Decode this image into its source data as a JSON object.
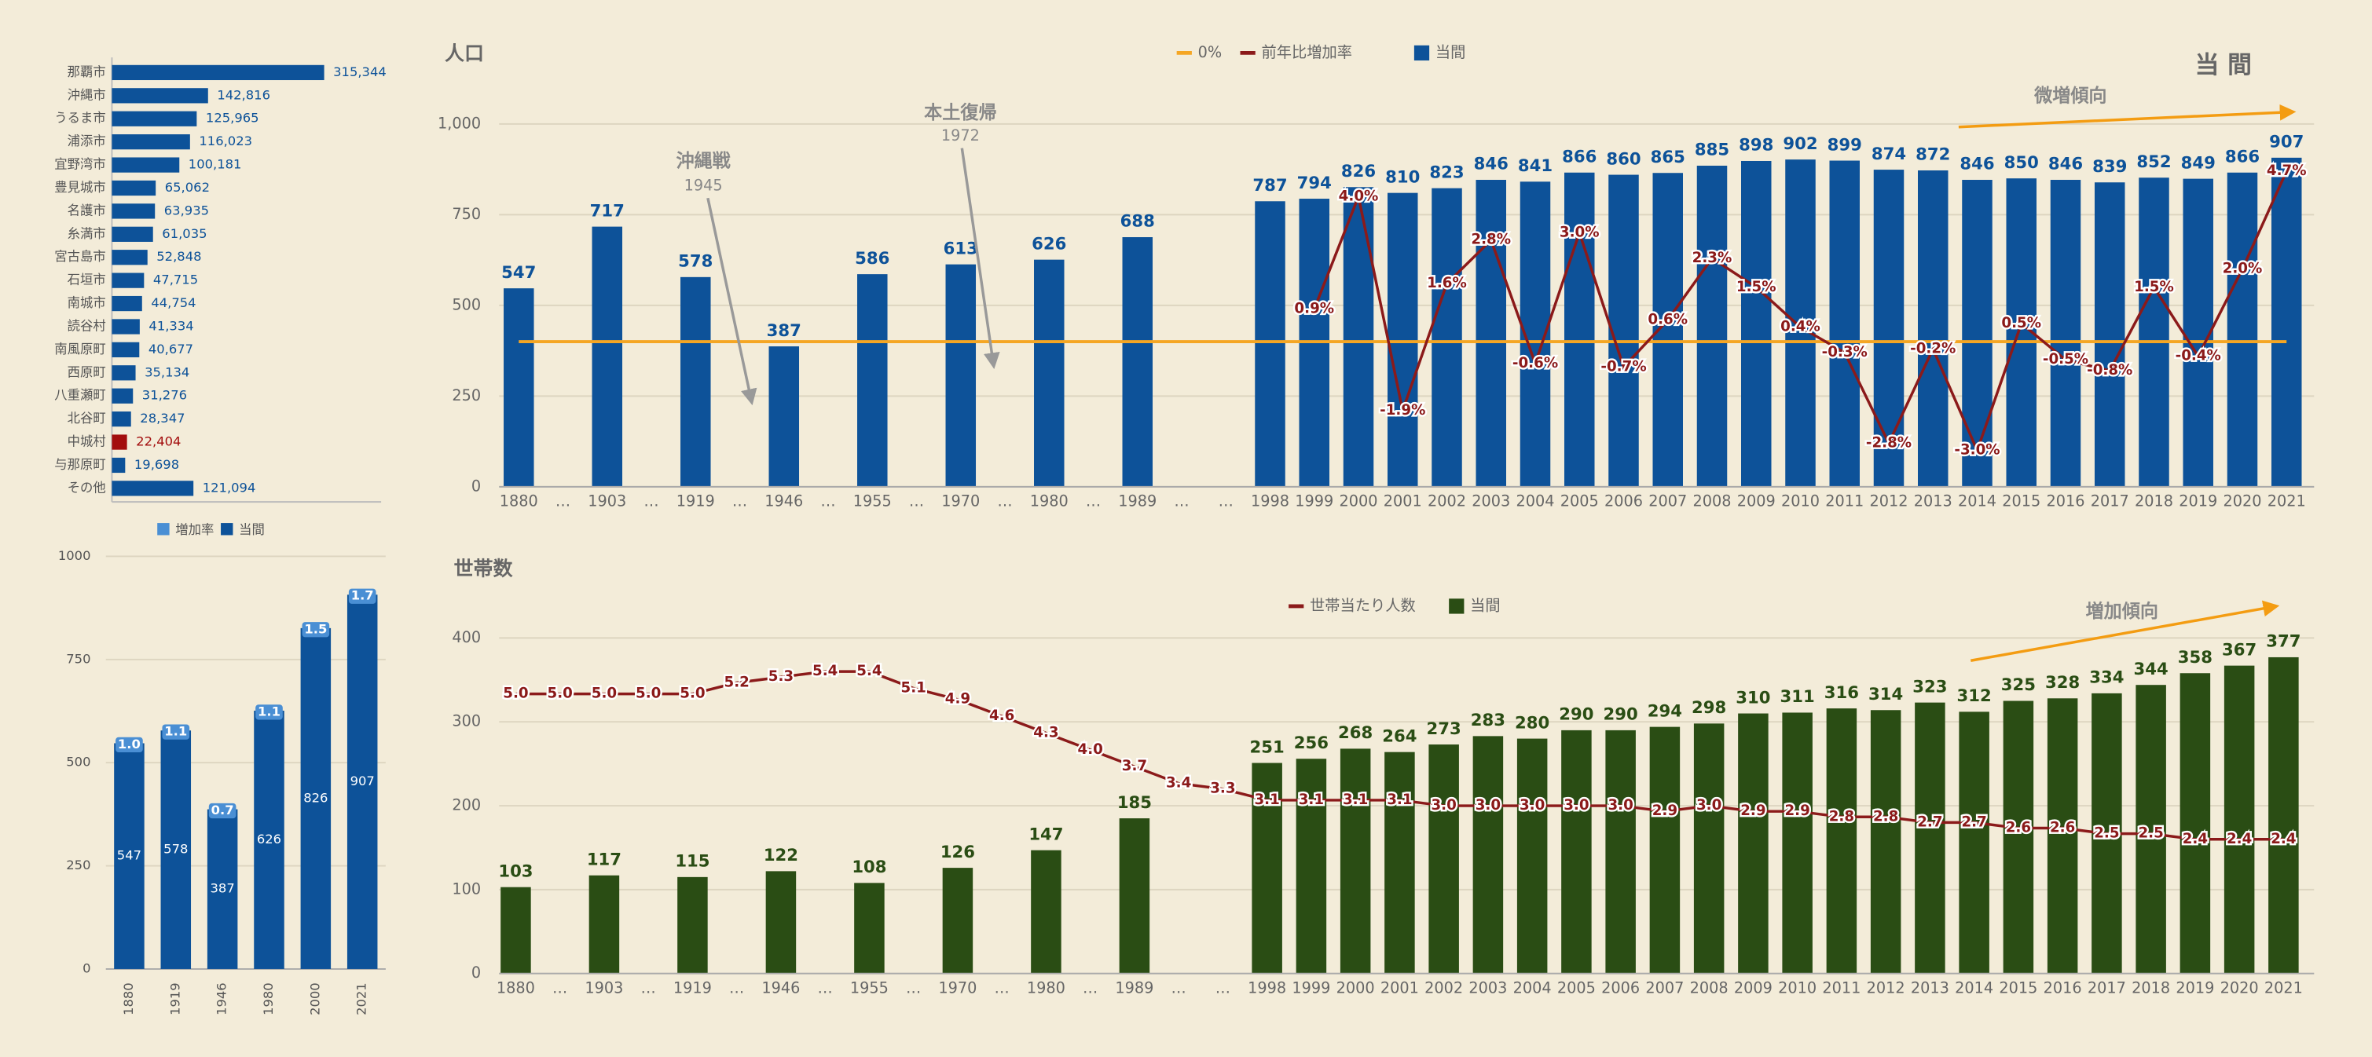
{
  "chart_data": [
    {
      "type": "hbar",
      "categories": [
        "那覇市",
        "沖縄市",
        "うるま市",
        "浦添市",
        "宜野湾市",
        "豊見城市",
        "名護市",
        "糸満市",
        "宮古島市",
        "石垣市",
        "南城市",
        "読谷村",
        "南風原町",
        "西原町",
        "八重瀬町",
        "北谷町",
        "中城村",
        "与那原町",
        "その他"
      ],
      "values": [
        315344,
        142816,
        125965,
        116023,
        100181,
        65062,
        63935,
        61035,
        52848,
        47715,
        44754,
        41334,
        40677,
        35134,
        31276,
        28347,
        22404,
        19698,
        121094
      ],
      "value_labels": [
        "315,344",
        "142,816",
        "125,965",
        "116,023",
        "100,181",
        "65,062",
        "63,935",
        "61,035",
        "52,848",
        "47,715",
        "44,754",
        "41,334",
        "40,677",
        "35,134",
        "31,276",
        "28,347",
        "22,404",
        "19,698",
        "121,094"
      ],
      "colors": [
        "#0d5299",
        "#0d5299",
        "#0d5299",
        "#0d5299",
        "#0d5299",
        "#0d5299",
        "#0d5299",
        "#0d5299",
        "#0d5299",
        "#0d5299",
        "#0d5299",
        "#0d5299",
        "#0d5299",
        "#0d5299",
        "#0d5299",
        "#0d5299",
        "#a30d0d",
        "#0d5299",
        "#0d5299"
      ],
      "xlim": [
        0,
        400000
      ]
    },
    {
      "type": "bar",
      "categories": [
        "1880",
        "1919",
        "1946",
        "1980",
        "2000",
        "2021"
      ],
      "series": [
        {
          "name": "増加率",
          "color": "#4a8fd4",
          "values": [
            1.0,
            1.1,
            0.7,
            1.1,
            1.5,
            1.7
          ],
          "value_labels": [
            "1.0",
            "1.1",
            "0.7",
            "1.1",
            "1.5",
            "1.7"
          ]
        },
        {
          "name": "当間",
          "color": "#0d5299",
          "values": [
            547,
            578,
            387,
            626,
            826,
            907
          ]
        }
      ],
      "ylim": [
        0,
        1000
      ],
      "yticks": [
        0,
        250,
        500,
        750,
        1000
      ],
      "grid": true
    },
    {
      "type": "combo",
      "title": "人口",
      "corner_label": "当 間",
      "categories": [
        "1880",
        "…",
        "1903",
        "…",
        "1919",
        "…",
        "1946",
        "…",
        "1955",
        "…",
        "1970",
        "…",
        "1980",
        "…",
        "1989",
        "…",
        "…",
        "1998",
        "1999",
        "2000",
        "2001",
        "2002",
        "2003",
        "2004",
        "2005",
        "2006",
        "2007",
        "2008",
        "2009",
        "2010",
        "2011",
        "2012",
        "2013",
        "2014",
        "2015",
        "2016",
        "2017",
        "2018",
        "2019",
        "2020",
        "2021"
      ],
      "reference_line": {
        "name": "0%",
        "value": 0,
        "axis": "y2",
        "color": "#f5a623"
      },
      "series": [
        {
          "name": "前年比増加率",
          "type": "line",
          "axis": "y2",
          "color": "#8b1a1a",
          "values": [
            null,
            null,
            null,
            null,
            null,
            null,
            null,
            null,
            null,
            null,
            null,
            null,
            null,
            null,
            null,
            null,
            null,
            null,
            0.9,
            4.0,
            -1.9,
            1.6,
            2.8,
            -0.6,
            3.0,
            -0.7,
            0.6,
            2.3,
            1.5,
            0.4,
            -0.3,
            -2.8,
            -0.2,
            -3.0,
            0.5,
            -0.5,
            -0.8,
            1.5,
            -0.4,
            2.0,
            4.7
          ],
          "value_labels": [
            null,
            null,
            null,
            null,
            null,
            null,
            null,
            null,
            null,
            null,
            null,
            null,
            null,
            null,
            null,
            null,
            null,
            null,
            "0.9%",
            "4.0%",
            "-1.9%",
            "1.6%",
            "2.8%",
            "-0.6%",
            "3.0%",
            "-0.7%",
            "0.6%",
            "2.3%",
            "1.5%",
            "0.4%",
            "-0.3%",
            "-2.8%",
            "-0.2%",
            "-3.0%",
            "0.5%",
            "-0.5%",
            "-0.8%",
            "1.5%",
            "-0.4%",
            "2.0%",
            "4.7%"
          ]
        },
        {
          "name": "当間",
          "type": "bar",
          "color": "#0d5299",
          "values": [
            547,
            null,
            717,
            null,
            578,
            null,
            387,
            null,
            586,
            null,
            613,
            null,
            626,
            null,
            688,
            null,
            null,
            787,
            794,
            826,
            810,
            823,
            846,
            841,
            866,
            860,
            865,
            885,
            898,
            902,
            899,
            874,
            872,
            846,
            850,
            846,
            839,
            852,
            849,
            866,
            907
          ]
        }
      ],
      "ylim": [
        0,
        1000
      ],
      "yticks": [
        0,
        250,
        500,
        750,
        {
          "value": 1000,
          "label": "1,000"
        }
      ],
      "y2lim": [
        -4,
        6
      ],
      "grid": true,
      "annotations": [
        {
          "text": "沖縄戦",
          "sub": "1945"
        },
        {
          "text": "本土復帰",
          "sub": "1972"
        },
        {
          "text": "微増傾向"
        }
      ]
    },
    {
      "type": "combo",
      "title": "世帯数",
      "categories": [
        "1880",
        "…",
        "1903",
        "…",
        "1919",
        "…",
        "1946",
        "…",
        "1955",
        "…",
        "1970",
        "…",
        "1980",
        "…",
        "1989",
        "…",
        "…",
        "1998",
        "1999",
        "2000",
        "2001",
        "2002",
        "2003",
        "2004",
        "2005",
        "2006",
        "2007",
        "2008",
        "2009",
        "2010",
        "2011",
        "2012",
        "2013",
        "2014",
        "2015",
        "2016",
        "2017",
        "2018",
        "2019",
        "2020",
        "2021"
      ],
      "series": [
        {
          "name": "世帯当たり人数",
          "type": "line",
          "axis": "y2",
          "color": "#8b1a1a",
          "values": [
            5.0,
            5.0,
            5.0,
            5.0,
            5.0,
            5.2,
            5.3,
            5.4,
            5.4,
            5.1,
            4.9,
            4.6,
            4.3,
            4.0,
            3.7,
            3.4,
            3.3,
            3.1,
            3.1,
            3.1,
            3.1,
            3.0,
            3.0,
            3.0,
            3.0,
            3.0,
            2.9,
            3.0,
            2.9,
            2.9,
            2.8,
            2.8,
            2.7,
            2.7,
            2.6,
            2.6,
            2.5,
            2.5,
            2.4,
            2.4,
            2.4
          ],
          "value_labels": [
            "5.0",
            "5.0",
            "5.0",
            "5.0",
            "5.0",
            "5.2",
            "5.3",
            "5.4",
            "5.4",
            "5.1",
            "4.9",
            "4.6",
            "4.3",
            "4.0",
            "3.7",
            "3.4",
            "3.3",
            "3.1",
            "3.1",
            "3.1",
            "3.1",
            "3.0",
            "3.0",
            "3.0",
            "3.0",
            "3.0",
            "2.9",
            "3.0",
            "2.9",
            "2.9",
            "2.8",
            "2.8",
            "2.7",
            "2.7",
            "2.6",
            "2.6",
            "2.5",
            "2.5",
            "2.4",
            "2.4",
            "2.4"
          ]
        },
        {
          "name": "当間",
          "type": "bar",
          "color": "#2a4d14",
          "values": [
            103,
            null,
            117,
            null,
            115,
            null,
            122,
            null,
            108,
            null,
            126,
            null,
            147,
            null,
            185,
            null,
            null,
            251,
            256,
            268,
            264,
            273,
            283,
            280,
            290,
            290,
            294,
            298,
            310,
            311,
            316,
            314,
            323,
            312,
            325,
            328,
            334,
            344,
            358,
            367,
            377
          ]
        }
      ],
      "ylim": [
        0,
        400
      ],
      "yticks": [
        0,
        100,
        200,
        300,
        400
      ],
      "y2lim": [
        0,
        6
      ],
      "grid": true,
      "annotations": [
        {
          "text": "増加傾向"
        }
      ]
    }
  ]
}
